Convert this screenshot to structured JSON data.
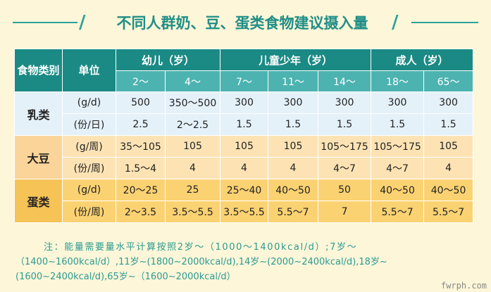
{
  "title": "不同人群奶、豆、蛋类食物建议摄入量",
  "slash": "/",
  "header": {
    "food_category": "食物类别",
    "unit": "单位",
    "groups": [
      "幼儿（岁）",
      "儿童少年（岁）",
      "成人（岁）"
    ],
    "ages": [
      "2～",
      "4～",
      "7～",
      "11～",
      "14～",
      "18～",
      "65～"
    ]
  },
  "rows": [
    {
      "food": "乳类",
      "unit": "(g/d)",
      "values": [
        "500",
        "350～500",
        "300",
        "300",
        "300",
        "300",
        "300"
      ]
    },
    {
      "food": "乳类",
      "unit": "(份/日)",
      "values": [
        "2.5",
        "2～2.5",
        "1.5",
        "1.5",
        "1.5",
        "1.5",
        "1.5"
      ]
    },
    {
      "food": "大豆",
      "unit": "(g/周)",
      "values": [
        "35～105",
        "105",
        "105",
        "105",
        "105～175",
        "105～175",
        "105"
      ]
    },
    {
      "food": "大豆",
      "unit": "(份/周)",
      "values": [
        "1.5～4",
        "4",
        "4",
        "4",
        "4～7",
        "4～7",
        "4"
      ]
    },
    {
      "food": "蛋类",
      "unit": "(g/d)",
      "values": [
        "20～25",
        "25",
        "25～40",
        "40～50",
        "50",
        "40～50",
        "40～50"
      ]
    },
    {
      "food": "蛋类",
      "unit": "(份/周)",
      "values": [
        "2～3.5",
        "3.5～5.5",
        "3.5～5.5",
        "5.5～7",
        "7",
        "5.5～7",
        "5.5～7"
      ]
    }
  ],
  "note": {
    "line1": "注：能量需要量水平计算按照2岁～（1000～1400kcal/d）;7岁～",
    "line2": "（1400~1600kcal/d）,11岁~(1800~2000kcal/d),14岁~(2000~2400kcal/d),18岁~",
    "line3": "(1600~2400kcal/d),65岁~（1600~2000kcal/d）"
  },
  "watermark": "fwrph.com"
}
